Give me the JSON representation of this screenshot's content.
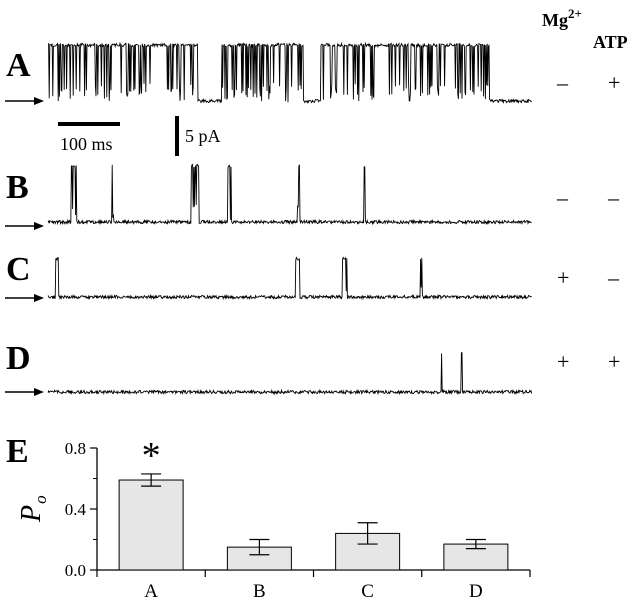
{
  "header": {
    "mg_label": "Mg",
    "mg_sup": "2+",
    "atp_label": "ATP"
  },
  "panels": [
    {
      "letter": "A",
      "mg": "–",
      "atp": "+",
      "trace": "high"
    },
    {
      "letter": "B",
      "mg": "–",
      "atp": "–",
      "trace": "low"
    },
    {
      "letter": "C",
      "mg": "+",
      "atp": "–",
      "trace": "lower"
    },
    {
      "letter": "D",
      "mg": "+",
      "atp": "+",
      "trace": "low"
    }
  ],
  "scale_bars": {
    "time_label": "100 ms",
    "current_label": "5 pA"
  },
  "chart_panel_letter": "E",
  "chart_data": {
    "type": "bar",
    "categories": [
      "A",
      "B",
      "C",
      "D"
    ],
    "values": [
      0.59,
      0.15,
      0.24,
      0.17
    ],
    "errors": [
      0.04,
      0.05,
      0.07,
      0.03
    ],
    "ylabel": "P",
    "ylabel_sub": "o",
    "ylim": [
      0,
      0.8
    ],
    "yticks": [
      0.0,
      0.4,
      0.8
    ],
    "ytick_labels": [
      "0.0",
      "0.4",
      "0.8"
    ],
    "annotation": "*",
    "bar_color": "#e6e6e6"
  }
}
